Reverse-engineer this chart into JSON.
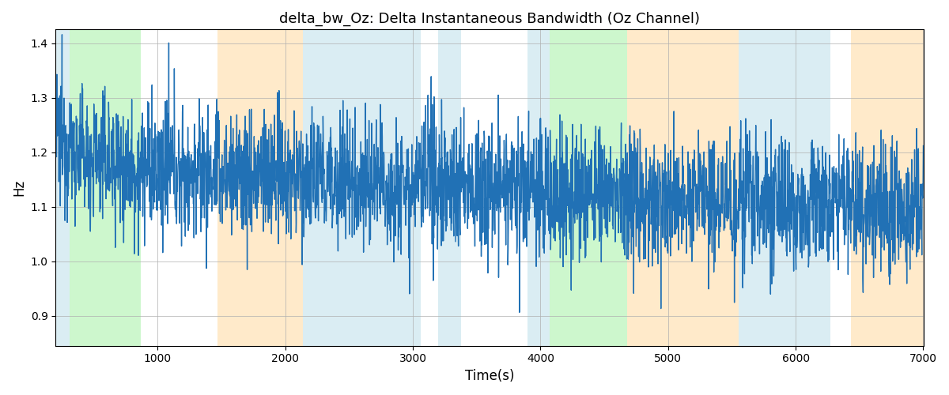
{
  "title": "delta_bw_Oz: Delta Instantaneous Bandwidth (Oz Channel)",
  "xlabel": "Time(s)",
  "ylabel": "Hz",
  "xlim": [
    200,
    7000
  ],
  "ylim": [
    0.845,
    1.425
  ],
  "yticks": [
    0.9,
    1.0,
    1.1,
    1.2,
    1.3,
    1.4
  ],
  "xticks": [
    1000,
    2000,
    3000,
    4000,
    5000,
    6000,
    7000
  ],
  "line_color": "#2171b5",
  "line_width": 1.0,
  "background_color": "#ffffff",
  "grid_color": "#b0b0b0",
  "shaded_regions": [
    {
      "xmin": 200,
      "xmax": 310,
      "color": "#add8e6",
      "alpha": 0.45
    },
    {
      "xmin": 310,
      "xmax": 870,
      "color": "#90ee90",
      "alpha": 0.45
    },
    {
      "xmin": 1470,
      "xmax": 2140,
      "color": "#ffdaa0",
      "alpha": 0.55
    },
    {
      "xmin": 2140,
      "xmax": 3060,
      "color": "#add8e6",
      "alpha": 0.45
    },
    {
      "xmin": 3200,
      "xmax": 3380,
      "color": "#add8e6",
      "alpha": 0.45
    },
    {
      "xmin": 3900,
      "xmax": 4070,
      "color": "#add8e6",
      "alpha": 0.45
    },
    {
      "xmin": 4070,
      "xmax": 4680,
      "color": "#90ee90",
      "alpha": 0.45
    },
    {
      "xmin": 4680,
      "xmax": 5550,
      "color": "#ffdaa0",
      "alpha": 0.55
    },
    {
      "xmin": 5550,
      "xmax": 6270,
      "color": "#add8e6",
      "alpha": 0.45
    },
    {
      "xmin": 6430,
      "xmax": 7050,
      "color": "#ffdaa0",
      "alpha": 0.55
    }
  ],
  "seed": 12345,
  "n_points": 3000,
  "base_level": 1.175,
  "trend_slope": -1.2e-05,
  "noise_std": 0.06,
  "slow_noise_std": 0.025,
  "slow_noise_window": 80
}
